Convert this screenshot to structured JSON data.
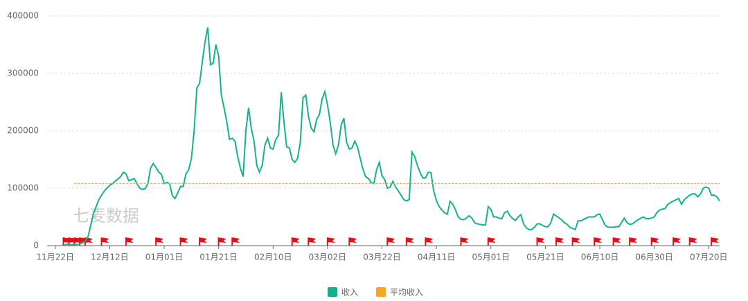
{
  "chart_data": {
    "type": "line",
    "watermark": "七麦数据",
    "xlim": [
      -3,
      244
    ],
    "xticks": [
      {
        "value": 0,
        "label": "11月22日"
      },
      {
        "value": 20,
        "label": "12月12日"
      },
      {
        "value": 40,
        "label": "01月01日"
      },
      {
        "value": 60,
        "label": "01月21日"
      },
      {
        "value": 80,
        "label": "02月10日"
      },
      {
        "value": 100,
        "label": "03月02日"
      },
      {
        "value": 120,
        "label": "03月22日"
      },
      {
        "value": 140,
        "label": "04月11日"
      },
      {
        "value": 160,
        "label": "05月01日"
      },
      {
        "value": 180,
        "label": "05月21日"
      },
      {
        "value": 200,
        "label": "06月10日"
      },
      {
        "value": 220,
        "label": "06月30日"
      },
      {
        "value": 240,
        "label": "07月20日"
      }
    ],
    "ylim": [
      0,
      400000
    ],
    "yticks": [
      0,
      100000,
      200000,
      300000,
      400000
    ],
    "grid": true,
    "flag_x": [
      4,
      6,
      8,
      10,
      12,
      18,
      27,
      38,
      47,
      54,
      61,
      66,
      88,
      94,
      101,
      109,
      123,
      130,
      137,
      150,
      160,
      178,
      185,
      191,
      199,
      206,
      212,
      220,
      228,
      234,
      242
    ],
    "flag_color": "#e0111b",
    "series": [
      {
        "name": "收入",
        "color": "#14b28a",
        "x": [
          3,
          4,
          5,
          6,
          7,
          8,
          9,
          10,
          11,
          12,
          13,
          14,
          15,
          16,
          17,
          18,
          19,
          20,
          21,
          22,
          23,
          24,
          25,
          26,
          27,
          28,
          29,
          30,
          31,
          32,
          33,
          34,
          35,
          36,
          37,
          38,
          39,
          40,
          41,
          42,
          43,
          44,
          45,
          46,
          47,
          48,
          49,
          50,
          51,
          52,
          53,
          54,
          55,
          56,
          57,
          58,
          59,
          60,
          61,
          62,
          63,
          64,
          65,
          66,
          67,
          68,
          69,
          70,
          71,
          72,
          73,
          74,
          75,
          76,
          77,
          78,
          79,
          80,
          81,
          82,
          83,
          84,
          85,
          86,
          87,
          88,
          89,
          90,
          91,
          92,
          93,
          94,
          95,
          96,
          97,
          98,
          99,
          100,
          101,
          102,
          103,
          104,
          105,
          106,
          107,
          108,
          109,
          110,
          111,
          112,
          113,
          114,
          115,
          116,
          117,
          118,
          119,
          120,
          121,
          122,
          123,
          124,
          125,
          126,
          127,
          128,
          129,
          130,
          131,
          132,
          133,
          134,
          135,
          136,
          137,
          138,
          139,
          140,
          141,
          142,
          143,
          144,
          145,
          146,
          147,
          148,
          149,
          150,
          151,
          152,
          153,
          154,
          155,
          156,
          157,
          158,
          159,
          160,
          161,
          162,
          163,
          164,
          165,
          166,
          167,
          168,
          169,
          170,
          171,
          172,
          173,
          174,
          175,
          176,
          177,
          178,
          179,
          180,
          181,
          182,
          183,
          186,
          187,
          188,
          189,
          191,
          192,
          193,
          195,
          196,
          198,
          199,
          200,
          202,
          203,
          205,
          206,
          207,
          209,
          210,
          211,
          212,
          214,
          216,
          217,
          218,
          219,
          220,
          221,
          222,
          224,
          225,
          226,
          228,
          229,
          230,
          231,
          233,
          234,
          235,
          236,
          237,
          238,
          239,
          240,
          241,
          242,
          243,
          244
        ],
        "values": [
          0,
          2000,
          3000,
          1000,
          2000,
          2000,
          3000,
          5000,
          8000,
          15000,
          35000,
          55000,
          68000,
          80000,
          88000,
          95000,
          100000,
          105000,
          108000,
          112000,
          116000,
          120000,
          128000,
          125000,
          113000,
          115000,
          117000,
          108000,
          100000,
          98000,
          99000,
          108000,
          135000,
          143000,
          136000,
          128000,
          124000,
          108000,
          110000,
          108000,
          87000,
          82000,
          92000,
          103000,
          103000,
          125000,
          132000,
          152000,
          200000,
          275000,
          282000,
          320000,
          355000,
          380000,
          315000,
          318000,
          350000,
          330000,
          262000,
          240000,
          215000,
          185000,
          187000,
          182000,
          155000,
          135000,
          120000,
          200000,
          240000,
          205000,
          182000,
          140000,
          128000,
          140000,
          175000,
          187000,
          170000,
          168000,
          185000,
          192000,
          267000,
          215000,
          172000,
          170000,
          150000,
          145000,
          152000,
          180000,
          258000,
          262000,
          225000,
          205000,
          198000,
          220000,
          228000,
          255000,
          268000,
          245000,
          215000,
          175000,
          160000,
          175000,
          210000,
          222000,
          180000,
          168000,
          170000,
          182000,
          172000,
          152000,
          133000,
          120000,
          117000,
          110000,
          108000,
          132000,
          145000,
          122000,
          115000,
          100000,
          102000,
          112000,
          102000,
          95000,
          88000,
          80000,
          78000,
          80000,
          163000,
          155000,
          140000,
          127000,
          118000,
          118000,
          128000,
          127000,
          95000,
          78000,
          68000,
          62000,
          57000,
          55000,
          77000,
          72000,
          62000,
          50000,
          46000,
          45000,
          48000,
          52000,
          48000,
          40000,
          38000,
          37000,
          36000,
          36000,
          68000,
          63000,
          50000,
          50000,
          48000,
          47000,
          57000,
          60000,
          52000,
          47000,
          44000,
          50000,
          54000,
          38000,
          31000,
          28000,
          28000,
          32000,
          38000,
          38000,
          35000,
          33000,
          33000,
          40000,
          55000,
          45000,
          40000,
          37000,
          32000,
          28000,
          43000,
          43000,
          48000,
          50000,
          50000,
          54000,
          55000,
          35000,
          32000,
          32000,
          33000,
          33000,
          48000,
          40000,
          37000,
          38000,
          45000,
          50000,
          47000,
          47000,
          48000,
          50000,
          58000,
          62000,
          65000,
          72000,
          75000,
          80000,
          82000,
          72000,
          80000,
          88000,
          90000,
          90000,
          85000,
          90000,
          100000,
          102000,
          100000,
          88000,
          88000,
          85000,
          78000
        ]
      },
      {
        "name": "平均收入",
        "color": "#f5a623",
        "dashed": true,
        "x": [
          7,
          244
        ],
        "values": [
          108000,
          108000
        ]
      }
    ]
  }
}
